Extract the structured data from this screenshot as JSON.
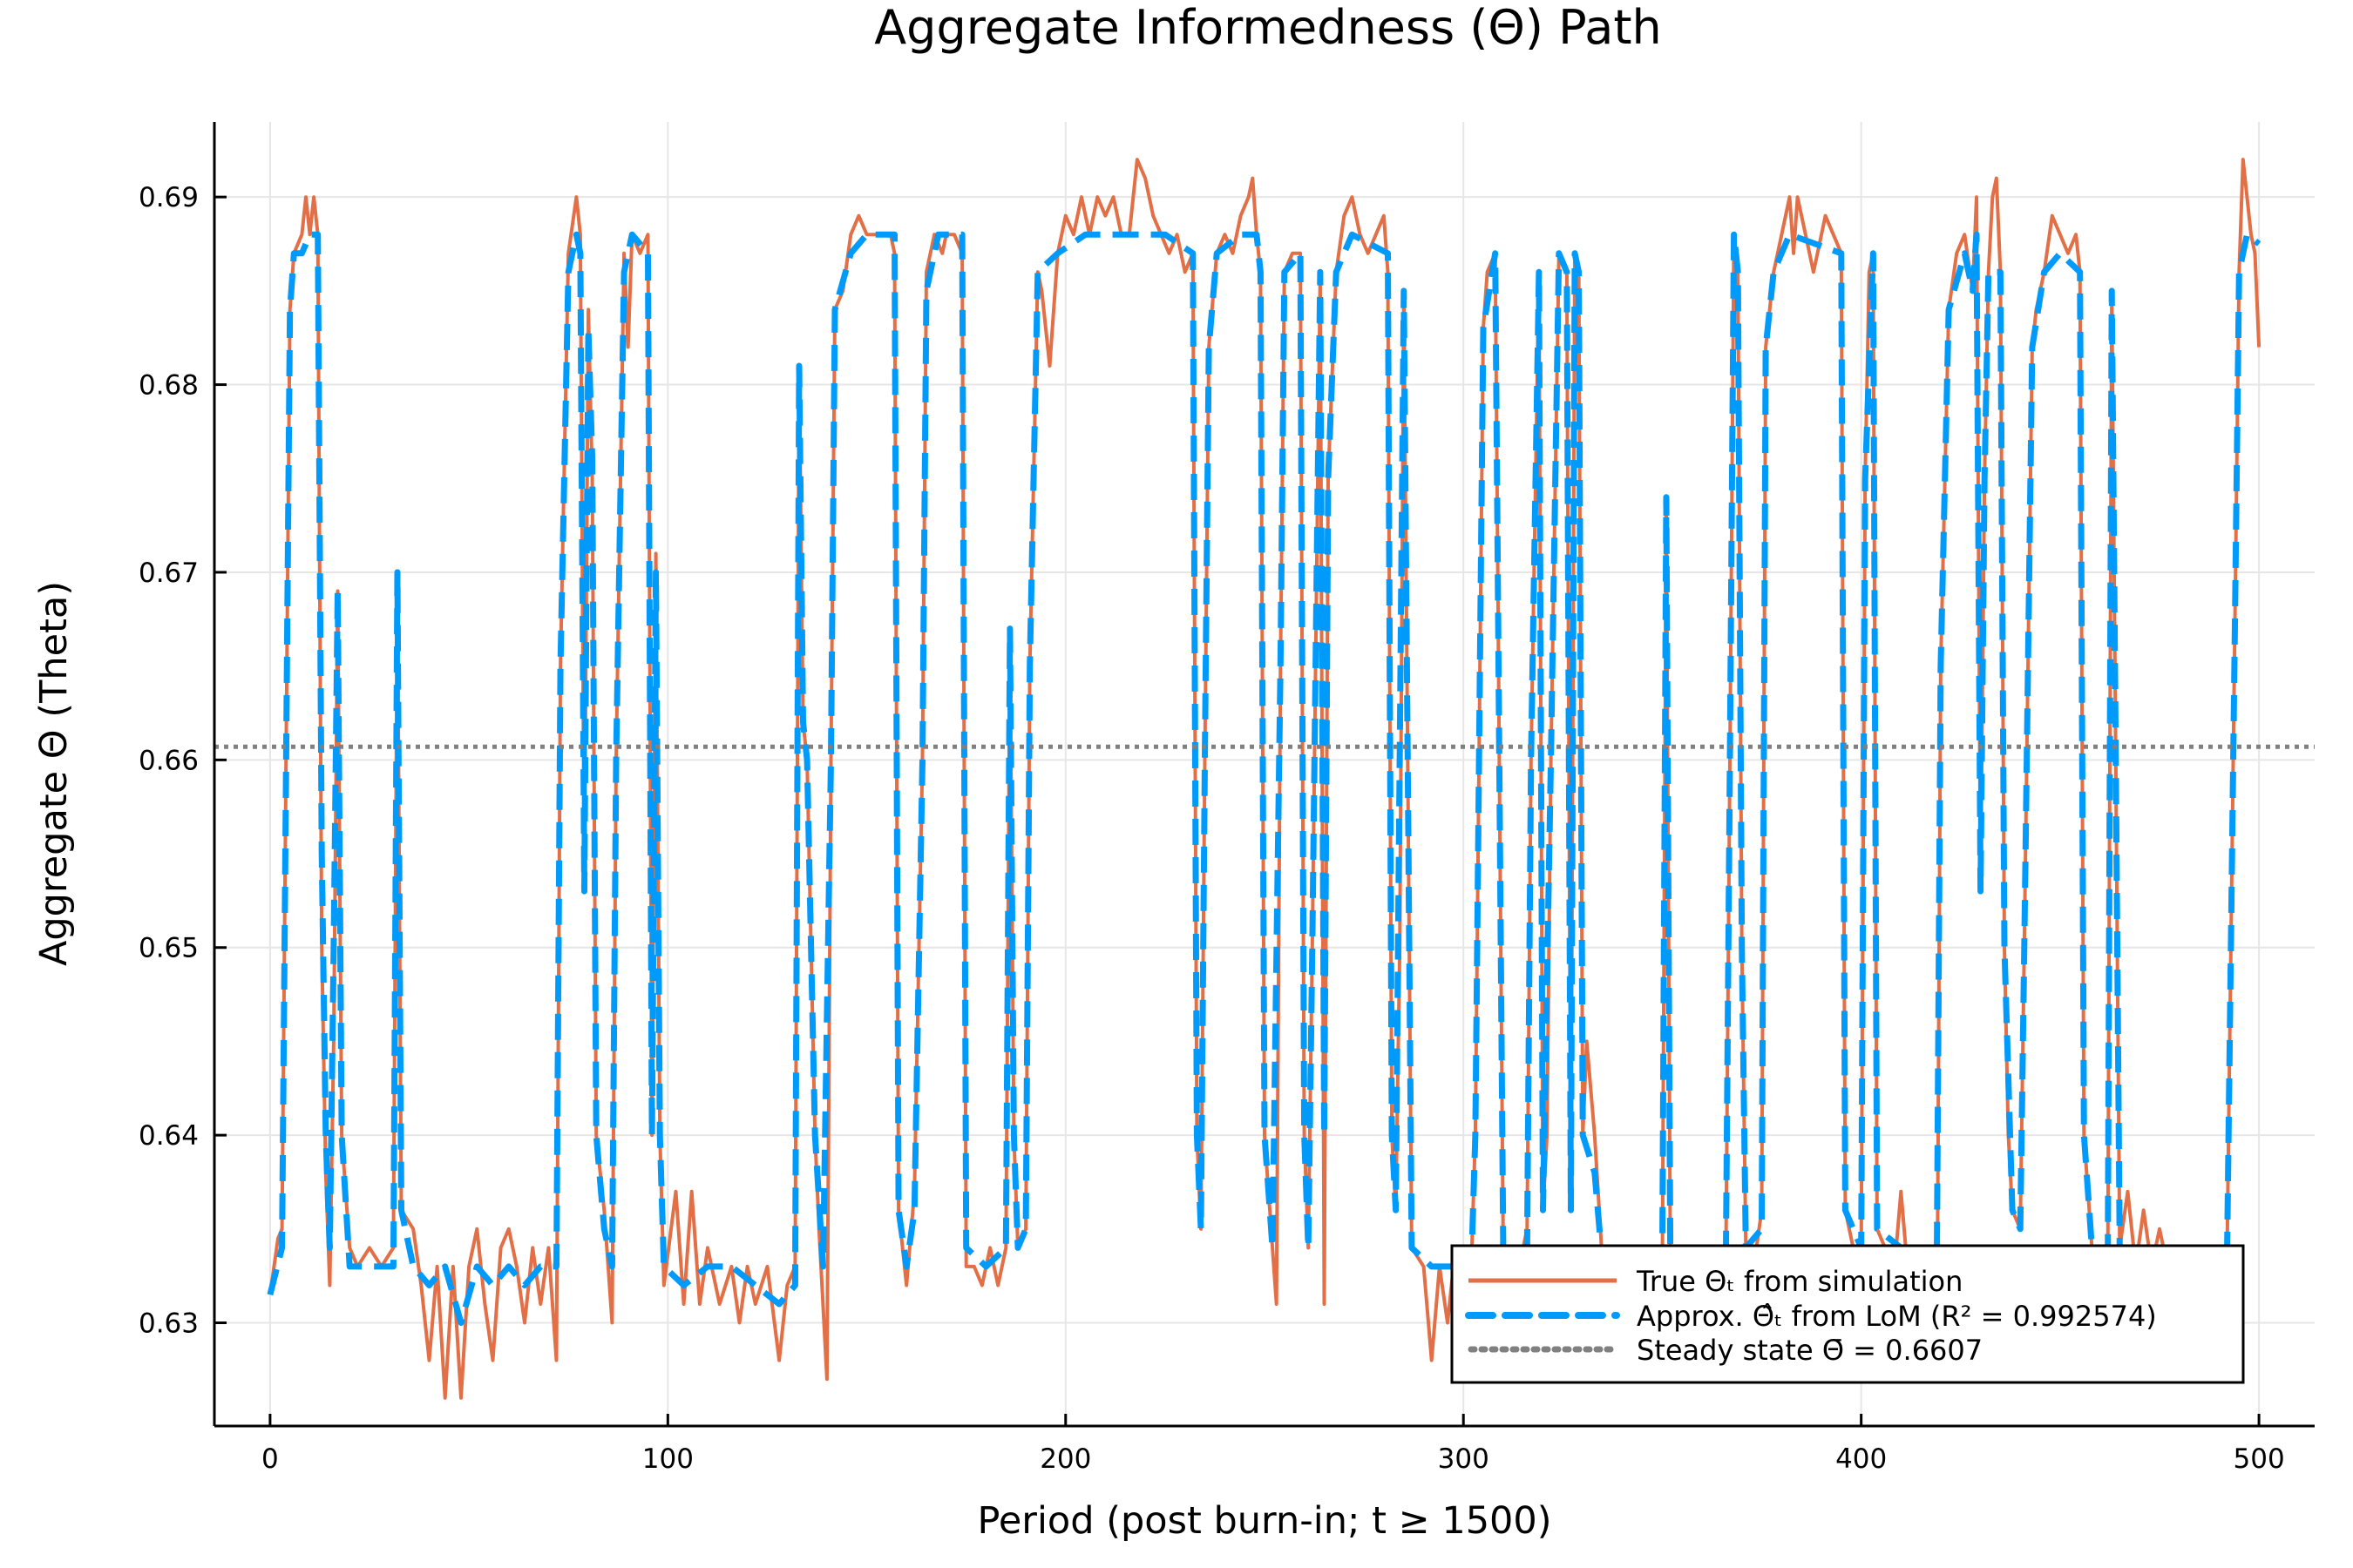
{
  "chart_data": {
    "type": "line",
    "title": "Aggregate Informedness (Θ) Path",
    "xlabel": "Period (post burn-in; t ≥ 1500)",
    "ylabel": "Aggregate Θ (Theta)",
    "xlim": [
      -14,
      514
    ],
    "ylim": [
      0.6245,
      0.694
    ],
    "xticks": [
      0,
      100,
      200,
      300,
      400,
      500
    ],
    "xtick_labels": [
      "0",
      "100",
      "200",
      "300",
      "400",
      "500"
    ],
    "yticks": [
      0.63,
      0.64,
      0.65,
      0.66,
      0.67,
      0.68,
      0.69
    ],
    "ytick_labels": [
      "0.63",
      "0.64",
      "0.65",
      "0.66",
      "0.67",
      "0.68",
      "0.69"
    ],
    "grid": true,
    "legend_position": "bottom-right",
    "series": [
      {
        "name": "True Θₜ from simulation",
        "color": "#E26F46",
        "style": "solid",
        "x": [
          0,
          2,
          3,
          5,
          6,
          8,
          9,
          10,
          11,
          12,
          13,
          14,
          15,
          16,
          17,
          18,
          20,
          22,
          25,
          28,
          31,
          32,
          33,
          36,
          38,
          40,
          42,
          44,
          46,
          48,
          50,
          52,
          54,
          56,
          58,
          60,
          62,
          64,
          66,
          68,
          70,
          72,
          73,
          75,
          77,
          78,
          79,
          80,
          81,
          82,
          84,
          86,
          87,
          89,
          90,
          91,
          93,
          95,
          96,
          97,
          98,
          99,
          102,
          104,
          106,
          108,
          110,
          113,
          116,
          118,
          120,
          122,
          125,
          128,
          130,
          132,
          133,
          134,
          135,
          137,
          138,
          140,
          141,
          142,
          144,
          146,
          148,
          150,
          152,
          154,
          156,
          157,
          158,
          160,
          162,
          164,
          165,
          167,
          169,
          170,
          172,
          174,
          175,
          177,
          179,
          181,
          183,
          185,
          186,
          187,
          188,
          190,
          191,
          193,
          194,
          196,
          198,
          200,
          202,
          204,
          206,
          208,
          210,
          212,
          214,
          216,
          218,
          220,
          222,
          224,
          226,
          228,
          230,
          232,
          233,
          234,
          235,
          236,
          238,
          240,
          242,
          244,
          246,
          247,
          248,
          249,
          250,
          252,
          253,
          254,
          255,
          257,
          259,
          260,
          261,
          262,
          264,
          265,
          266,
          268,
          270,
          272,
          274,
          276,
          278,
          280,
          281,
          282,
          283,
          284,
          285,
          286,
          287,
          290,
          292,
          294,
          296,
          298,
          300,
          302,
          303,
          305,
          306,
          308,
          310,
          312,
          314,
          316,
          317,
          319,
          320,
          321,
          322,
          324,
          326,
          327,
          328,
          329,
          330,
          331,
          333,
          335,
          338,
          342,
          346,
          350,
          351,
          352,
          355,
          358,
          362,
          366,
          367,
          368,
          369,
          370,
          371,
          373,
          375,
          376,
          378,
          380,
          382,
          383,
          384,
          386,
          388,
          389,
          391,
          393,
          395,
          396,
          398,
          400,
          401,
          402,
          403,
          404,
          406,
          408,
          410,
          412,
          414,
          416,
          418,
          419,
          420,
          422,
          424,
          426,
          428,
          429,
          430,
          431,
          432,
          433,
          434,
          435,
          436,
          437,
          438,
          440,
          441,
          443,
          444,
          446,
          448,
          450,
          452,
          454,
          455,
          456,
          458,
          460,
          462,
          463,
          464,
          465,
          467,
          469,
          471,
          473,
          475,
          477,
          479,
          481,
          483,
          485,
          487,
          489,
          491,
          492,
          494,
          495,
          496,
          497,
          498,
          499,
          500
        ],
        "y": [
          0.6315,
          0.6345,
          0.635,
          0.684,
          0.687,
          0.688,
          0.69,
          0.688,
          0.69,
          0.688,
          0.65,
          0.638,
          0.632,
          0.645,
          0.669,
          0.64,
          0.634,
          0.633,
          0.634,
          0.633,
          0.634,
          0.67,
          0.636,
          0.635,
          0.632,
          0.628,
          0.633,
          0.626,
          0.633,
          0.626,
          0.633,
          0.635,
          0.631,
          0.628,
          0.634,
          0.635,
          0.633,
          0.63,
          0.634,
          0.631,
          0.634,
          0.628,
          0.665,
          0.687,
          0.69,
          0.688,
          0.653,
          0.684,
          0.675,
          0.64,
          0.636,
          0.63,
          0.66,
          0.687,
          0.682,
          0.688,
          0.687,
          0.688,
          0.64,
          0.671,
          0.64,
          0.632,
          0.637,
          0.631,
          0.637,
          0.631,
          0.634,
          0.631,
          0.633,
          0.63,
          0.633,
          0.631,
          0.633,
          0.628,
          0.632,
          0.633,
          0.681,
          0.662,
          0.66,
          0.64,
          0.635,
          0.627,
          0.66,
          0.684,
          0.685,
          0.688,
          0.689,
          0.688,
          0.688,
          0.688,
          0.688,
          0.687,
          0.636,
          0.632,
          0.637,
          0.66,
          0.686,
          0.688,
          0.687,
          0.688,
          0.688,
          0.687,
          0.633,
          0.633,
          0.632,
          0.634,
          0.632,
          0.634,
          0.667,
          0.64,
          0.634,
          0.635,
          0.665,
          0.686,
          0.685,
          0.681,
          0.687,
          0.689,
          0.688,
          0.69,
          0.688,
          0.69,
          0.689,
          0.69,
          0.688,
          0.688,
          0.692,
          0.691,
          0.689,
          0.688,
          0.687,
          0.688,
          0.686,
          0.687,
          0.64,
          0.635,
          0.66,
          0.682,
          0.687,
          0.688,
          0.687,
          0.689,
          0.69,
          0.691,
          0.688,
          0.686,
          0.64,
          0.634,
          0.631,
          0.665,
          0.686,
          0.687,
          0.687,
          0.64,
          0.634,
          0.65,
          0.686,
          0.631,
          0.675,
          0.686,
          0.689,
          0.69,
          0.688,
          0.687,
          0.688,
          0.689,
          0.686,
          0.64,
          0.636,
          0.65,
          0.685,
          0.66,
          0.634,
          0.633,
          0.628,
          0.633,
          0.63,
          0.634,
          0.633,
          0.633,
          0.64,
          0.683,
          0.686,
          0.687,
          0.634,
          0.632,
          0.633,
          0.635,
          0.66,
          0.686,
          0.636,
          0.64,
          0.66,
          0.687,
          0.686,
          0.636,
          0.687,
          0.686,
          0.64,
          0.645,
          0.64,
          0.633,
          0.633,
          0.632,
          0.633,
          0.632,
          0.674,
          0.634,
          0.633,
          0.633,
          0.633,
          0.634,
          0.66,
          0.688,
          0.686,
          0.65,
          0.634,
          0.633,
          0.636,
          0.682,
          0.686,
          0.688,
          0.69,
          0.687,
          0.69,
          0.688,
          0.686,
          0.687,
          0.689,
          0.688,
          0.687,
          0.636,
          0.634,
          0.634,
          0.675,
          0.686,
          0.687,
          0.635,
          0.634,
          0.632,
          0.637,
          0.632,
          0.633,
          0.631,
          0.633,
          0.627,
          0.665,
          0.684,
          0.687,
          0.688,
          0.685,
          0.69,
          0.653,
          0.675,
          0.686,
          0.69,
          0.691,
          0.686,
          0.65,
          0.64,
          0.636,
          0.635,
          0.65,
          0.682,
          0.684,
          0.686,
          0.689,
          0.688,
          0.687,
          0.688,
          0.686,
          0.64,
          0.634,
          0.634,
          0.634,
          0.685,
          0.66,
          0.634,
          0.637,
          0.633,
          0.636,
          0.633,
          0.635,
          0.633,
          0.634,
          0.632,
          0.633,
          0.634,
          0.633,
          0.634,
          0.633,
          0.634,
          0.668,
          0.686,
          0.692,
          0.69,
          0.688,
          0.687,
          0.682
        ]
      },
      {
        "name": "Approx. Θ̂ₜ from LoM (R² = 0.992574)",
        "color": "#009AFA",
        "style": "dashed",
        "x": [
          0,
          3,
          5,
          6,
          8,
          10,
          12,
          13,
          14,
          15,
          16,
          17,
          18,
          20,
          25,
          31,
          32,
          33,
          36,
          40,
          44,
          48,
          52,
          56,
          60,
          64,
          68,
          72,
          73,
          75,
          77,
          78,
          79,
          80,
          81,
          82,
          84,
          86,
          87,
          89,
          91,
          95,
          96,
          97,
          98,
          99,
          104,
          110,
          116,
          122,
          128,
          132,
          133,
          134,
          135,
          137,
          139,
          141,
          142,
          146,
          150,
          157,
          158,
          160,
          162,
          164,
          165,
          168,
          174,
          175,
          180,
          185,
          186,
          187,
          188,
          190,
          191,
          193,
          198,
          205,
          215,
          225,
          232,
          233,
          234,
          235,
          236,
          238,
          244,
          248,
          249,
          250,
          252,
          254,
          255,
          259,
          260,
          261,
          262,
          264,
          265,
          266,
          268,
          272,
          281,
          282,
          283,
          285,
          286,
          287,
          292,
          302,
          303,
          305,
          308,
          310,
          316,
          317,
          319,
          320,
          322,
          324,
          326,
          327,
          328,
          329,
          330,
          333,
          335,
          350,
          351,
          352,
          366,
          367,
          368,
          369,
          370,
          371,
          375,
          376,
          378,
          382,
          395,
          396,
          400,
          401,
          403,
          404,
          410,
          419,
          420,
          422,
          426,
          428,
          429,
          430,
          431,
          432,
          435,
          436,
          438,
          440,
          441,
          443,
          446,
          450,
          455,
          456,
          458,
          462,
          463,
          464,
          465,
          470,
          480,
          492,
          494,
          495,
          497,
          500
        ],
        "y": [
          0.6315,
          0.634,
          0.684,
          0.687,
          0.687,
          0.688,
          0.688,
          0.655,
          0.64,
          0.634,
          0.65,
          0.669,
          0.64,
          0.633,
          0.633,
          0.633,
          0.67,
          0.636,
          0.633,
          0.632,
          0.633,
          0.63,
          0.633,
          0.632,
          0.633,
          0.632,
          0.633,
          0.633,
          0.665,
          0.686,
          0.688,
          0.687,
          0.653,
          0.683,
          0.676,
          0.64,
          0.635,
          0.633,
          0.66,
          0.686,
          0.688,
          0.687,
          0.64,
          0.67,
          0.64,
          0.633,
          0.632,
          0.633,
          0.633,
          0.632,
          0.631,
          0.632,
          0.681,
          0.662,
          0.66,
          0.64,
          0.633,
          0.66,
          0.684,
          0.687,
          0.688,
          0.688,
          0.636,
          0.633,
          0.636,
          0.66,
          0.685,
          0.688,
          0.688,
          0.634,
          0.633,
          0.634,
          0.667,
          0.64,
          0.634,
          0.635,
          0.665,
          0.686,
          0.687,
          0.688,
          0.688,
          0.688,
          0.687,
          0.64,
          0.635,
          0.66,
          0.682,
          0.687,
          0.688,
          0.688,
          0.686,
          0.64,
          0.634,
          0.665,
          0.686,
          0.687,
          0.64,
          0.634,
          0.65,
          0.686,
          0.64,
          0.675,
          0.686,
          0.688,
          0.687,
          0.64,
          0.636,
          0.685,
          0.66,
          0.634,
          0.633,
          0.633,
          0.64,
          0.683,
          0.687,
          0.634,
          0.634,
          0.66,
          0.686,
          0.636,
          0.66,
          0.687,
          0.686,
          0.636,
          0.687,
          0.686,
          0.64,
          0.638,
          0.633,
          0.633,
          0.674,
          0.634,
          0.634,
          0.66,
          0.688,
          0.686,
          0.65,
          0.634,
          0.635,
          0.682,
          0.686,
          0.688,
          0.687,
          0.636,
          0.634,
          0.675,
          0.687,
          0.635,
          0.634,
          0.633,
          0.665,
          0.684,
          0.687,
          0.685,
          0.688,
          0.653,
          0.675,
          0.686,
          0.686,
          0.65,
          0.636,
          0.635,
          0.65,
          0.682,
          0.686,
          0.687,
          0.686,
          0.64,
          0.634,
          0.634,
          0.685,
          0.66,
          0.634,
          0.634,
          0.633,
          0.634,
          0.668,
          0.686,
          0.688,
          0.6875
        ]
      },
      {
        "name": "Steady state Θ̄ = 0.6607",
        "color": "#808080",
        "style": "dotted",
        "hline": 0.6607
      }
    ]
  }
}
